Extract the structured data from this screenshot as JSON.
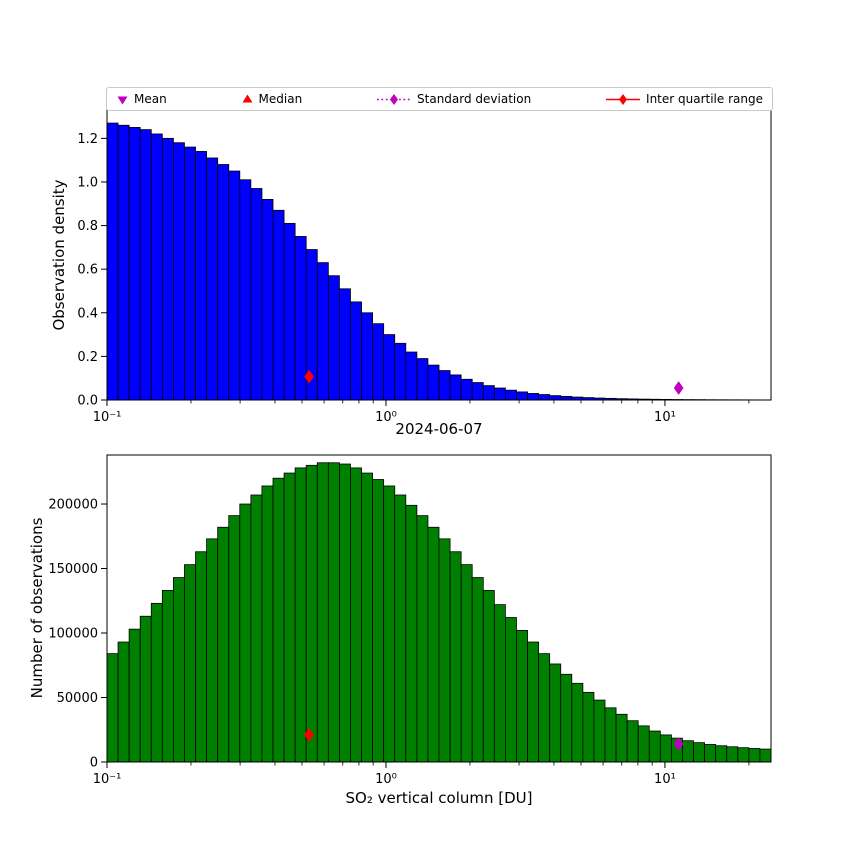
{
  "figure": {
    "background": "#ffffff"
  },
  "legend": {
    "items": [
      {
        "label": "Mean",
        "marker": "triangle-down",
        "color": "#bf00bf"
      },
      {
        "label": "Median",
        "marker": "triangle-up",
        "color": "#ff0000"
      },
      {
        "label": "Standard deviation",
        "marker": "diamond-dotted",
        "color": "#bf00bf"
      },
      {
        "label": "Inter quartile range",
        "marker": "diamond-solid",
        "color": "#ff0000"
      }
    ]
  },
  "chart_data": [
    {
      "type": "bar",
      "id": "observation-density-histogram",
      "title": "",
      "xlabel": "",
      "ylabel": "Observation density",
      "x_scale": "log",
      "xlim": [
        0.1,
        24
      ],
      "ylim": [
        0,
        1.33
      ],
      "grid": false,
      "bar_color": "#0000ff",
      "edge_color": "#000000",
      "n_bins": 60,
      "values": [
        1.27,
        1.26,
        1.25,
        1.24,
        1.22,
        1.2,
        1.18,
        1.16,
        1.14,
        1.11,
        1.08,
        1.05,
        1.01,
        0.97,
        0.92,
        0.87,
        0.81,
        0.75,
        0.69,
        0.63,
        0.57,
        0.51,
        0.45,
        0.4,
        0.35,
        0.3,
        0.26,
        0.22,
        0.19,
        0.16,
        0.135,
        0.115,
        0.095,
        0.08,
        0.066,
        0.055,
        0.045,
        0.037,
        0.03,
        0.025,
        0.02,
        0.0165,
        0.0135,
        0.011,
        0.009,
        0.0075,
        0.006,
        0.005,
        0.004,
        0.0034,
        0.0028,
        0.0023,
        0.0019,
        0.0016,
        0.0013,
        0.0011,
        0.0009,
        0.0008,
        0.0006,
        0.0005
      ],
      "y_ticks": [
        0.0,
        0.2,
        0.4,
        0.6,
        0.8,
        1.0,
        1.2
      ],
      "y_tick_labels": [
        "0.0",
        "0.2",
        "0.4",
        "0.6",
        "0.8",
        "1.0",
        "1.2"
      ],
      "x_major_ticks": [
        0.1,
        1,
        10
      ],
      "x_tick_labels": [
        "10⁻¹",
        "10⁰",
        "10¹"
      ],
      "markers": [
        {
          "name": "inter-quartile-range-marker",
          "x": 0.53,
          "y": 0.107,
          "color": "#ff0000",
          "shape": "thin-diamond"
        },
        {
          "name": "standard-deviation-marker",
          "x": 11.2,
          "y": 0.055,
          "color": "#bf00bf",
          "shape": "thin-diamond"
        }
      ]
    },
    {
      "type": "bar",
      "id": "observation-count-histogram",
      "title": "2024-06-07",
      "xlabel": "SO₂ vertical column [DU]",
      "ylabel": "Number of observations",
      "x_scale": "log",
      "xlim": [
        0.1,
        24
      ],
      "ylim": [
        0,
        238000
      ],
      "grid": false,
      "bar_color": "#008000",
      "edge_color": "#000000",
      "n_bins": 60,
      "values": [
        84000,
        93000,
        103000,
        113000,
        123000,
        133000,
        143000,
        153000,
        163000,
        173000,
        182000,
        191000,
        200000,
        207000,
        214000,
        220000,
        224000,
        228000,
        230000,
        232000,
        232000,
        231000,
        228000,
        224000,
        219000,
        214000,
        207000,
        199000,
        191000,
        182000,
        173000,
        163000,
        153000,
        143000,
        133000,
        122000,
        112000,
        102000,
        93000,
        84000,
        76000,
        68000,
        61000,
        54000,
        48000,
        42000,
        37000,
        32000,
        28000,
        24000,
        21000,
        18500,
        16500,
        15000,
        13600,
        12600,
        11800,
        11100,
        10500,
        10000
      ],
      "y_ticks": [
        0,
        50000,
        100000,
        150000,
        200000
      ],
      "y_tick_labels": [
        "0",
        "50000",
        "100000",
        "150000",
        "200000"
      ],
      "x_major_ticks": [
        0.1,
        1,
        10
      ],
      "x_tick_labels": [
        "10⁻¹",
        "10⁰",
        "10¹"
      ],
      "markers": [
        {
          "name": "inter-quartile-range-marker",
          "x": 0.53,
          "y": 21000,
          "color": "#ff0000",
          "shape": "thin-diamond"
        },
        {
          "name": "standard-deviation-marker",
          "x": 11.2,
          "y": 14000,
          "color": "#bf00bf",
          "shape": "thin-diamond"
        }
      ]
    }
  ]
}
